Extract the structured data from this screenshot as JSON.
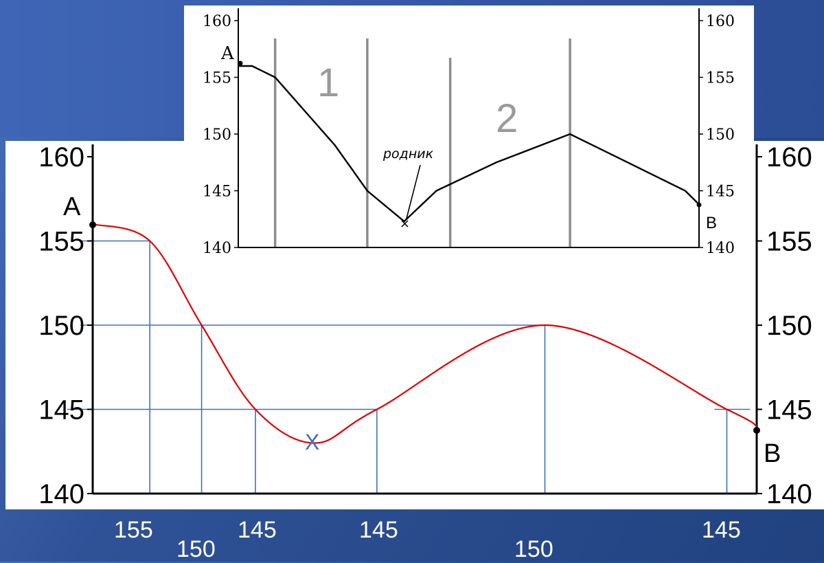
{
  "colors": {
    "profile_line": "#e00000",
    "guide_line": "#3d6fc0",
    "inset_vertical": "#8c8c8c",
    "axis": "#000000"
  },
  "main_chart": {
    "left_label": "A",
    "right_label": "B",
    "spring_mark": "X",
    "y_ticks": [
      "160",
      "155",
      "150",
      "145",
      "140"
    ],
    "bottom_labels": [
      "155",
      "150",
      "145",
      "145",
      "150",
      "145"
    ]
  },
  "inset_chart": {
    "left_label": "A",
    "right_label": "B",
    "spring_label": "родник",
    "zone_labels": [
      "1",
      "2"
    ],
    "y_ticks": [
      "160",
      "155",
      "150",
      "145",
      "140"
    ]
  },
  "chart_data": [
    {
      "type": "line",
      "title": "",
      "xlabel": "",
      "ylabel": "",
      "ylim": [
        140,
        160
      ],
      "y_ticks": [
        140,
        145,
        150,
        155,
        160
      ],
      "series": [
        {
          "x": [
            0,
            0.086,
            0.164,
            0.245,
            0.334,
            0.428,
            0.681,
            0.955,
            1.0
          ],
          "values": [
            156,
            155,
            150,
            145,
            143,
            145,
            150,
            145,
            144
          ]
        }
      ],
      "annotations": [
        "A",
        "B",
        "X"
      ],
      "guides": [
        {
          "x": 0.086,
          "y": 155
        },
        {
          "x": 0.164,
          "y": 150
        },
        {
          "x": 0.245,
          "y": 145
        },
        {
          "x": 0.428,
          "y": 145
        },
        {
          "x": 0.681,
          "y": 150
        },
        {
          "x": 0.955,
          "y": 145
        }
      ]
    },
    {
      "type": "line",
      "title": "",
      "xlabel": "",
      "ylabel": "",
      "ylim": [
        140,
        160
      ],
      "y_ticks": [
        140,
        145,
        150,
        155,
        160
      ],
      "series": [
        {
          "x": [
            0,
            0.03,
            0.08,
            0.21,
            0.28,
            0.36,
            0.43,
            0.56,
            0.72,
            0.97,
            1.0
          ],
          "values": [
            156,
            156,
            155,
            149,
            145,
            142.3,
            145,
            147.5,
            150,
            145,
            143.8
          ]
        }
      ],
      "zone_labels": [
        "1",
        "2"
      ],
      "annotations": [
        "A",
        "B",
        "родник"
      ],
      "verticals_x": [
        0.08,
        0.28,
        0.46,
        0.72
      ]
    }
  ]
}
